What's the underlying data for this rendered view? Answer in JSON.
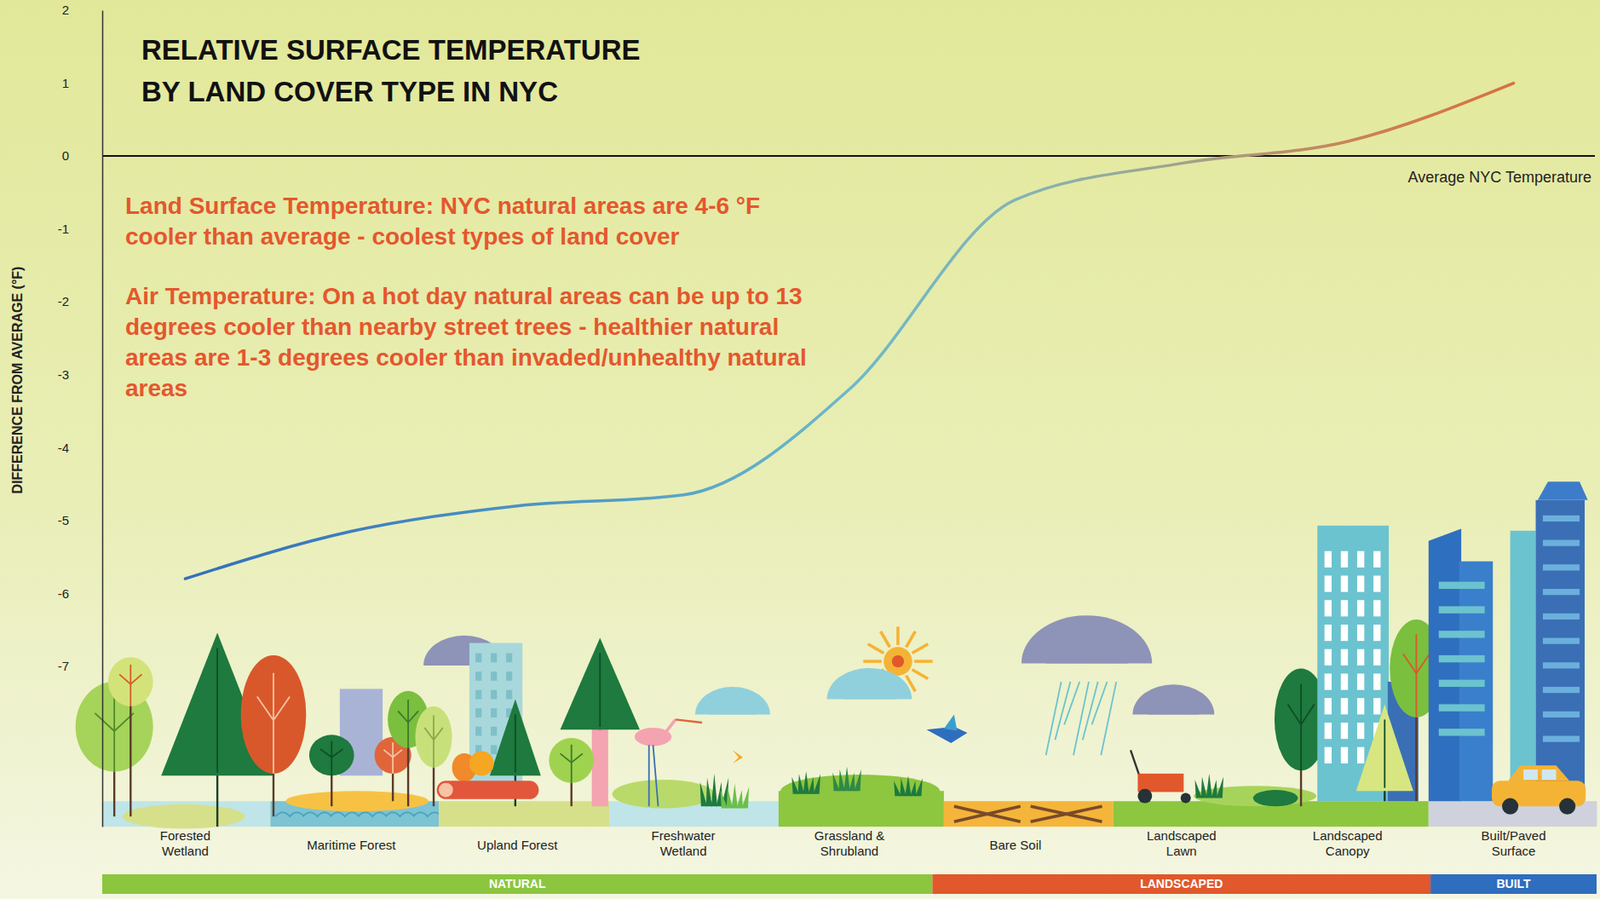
{
  "chart_data": {
    "type": "line",
    "title": [
      "RELATIVE SURFACE TEMPERATURE",
      "BY LAND COVER TYPE IN NYC"
    ],
    "y_label": "DIFFERENCE FROM AVERAGE (°F)",
    "categories": [
      "Forested Wetland",
      "Maritime Forest",
      "Upland Forest",
      "Freshwater Wetland",
      "Grassland & Shrubland",
      "Bare Soil",
      "Landscaped Lawn",
      "Landscaped Canopy",
      "Built/Paved Surface"
    ],
    "values": [
      -5.8,
      -5.15,
      -4.8,
      -4.65,
      -3.2,
      -0.6,
      -0.1,
      0.2,
      1.0
    ],
    "colors": [
      "#3470b8",
      "#3d7fbf",
      "#4a92c3",
      "#5aa5c6",
      "#6cb9c9",
      "#82b4b6",
      "#a2a38a",
      "#c9835a",
      "#d8703e"
    ],
    "ylim": [
      -9.2,
      2
    ],
    "yticks": [
      2,
      1,
      0,
      -1,
      -2,
      -3,
      -4,
      -5,
      -6,
      -7
    ],
    "grid": false,
    "reference_line": {
      "value": 0,
      "label": "Average NYC Temperature"
    },
    "annotations": [
      {
        "text": "Land Surface Temperature: NYC natural areas are 4-6 °F cooler than average - coolest types of land cover"
      },
      {
        "text": "Air Temperature: On a hot day natural areas can be up to 13 degrees cooler than nearby street trees - healthier natural areas are 1-3 degrees cooler than invaded/unhealthy natural areas"
      }
    ],
    "groups": [
      {
        "label": "NATURAL",
        "color": "#8cc63f",
        "start": 0,
        "end": 4
      },
      {
        "label": "LANDSCAPED",
        "color": "#e0582b",
        "start": 5,
        "end": 7
      },
      {
        "label": "BUILT",
        "color": "#2f6dbf",
        "start": 8,
        "end": 8
      }
    ]
  }
}
